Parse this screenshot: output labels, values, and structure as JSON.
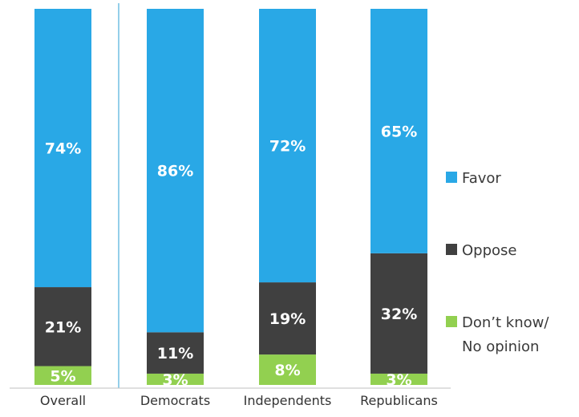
{
  "chart_data": {
    "type": "bar",
    "stacked": true,
    "percent_stacked": true,
    "categories": [
      "Overall",
      "Democrats",
      "Independents",
      "Republicans"
    ],
    "series": [
      {
        "name": "Favor",
        "values": [
          74,
          86,
          72,
          65
        ],
        "labels": [
          "74%",
          "86%",
          "72%",
          "65%"
        ],
        "color": "#29a8e6"
      },
      {
        "name": "Oppose",
        "values": [
          21,
          11,
          19,
          32
        ],
        "labels": [
          "21%",
          "11%",
          "19%",
          "32%"
        ],
        "color": "#404040"
      },
      {
        "name": "Don’t know/ No opinion",
        "legend_lines": [
          "Don’t know/",
          "No opinion"
        ],
        "values": [
          5,
          3,
          8,
          3
        ],
        "labels": [
          "5%",
          "3%",
          "8%",
          "3%"
        ],
        "color": "#92d050"
      }
    ],
    "ylim": [
      0,
      100
    ],
    "grid": false,
    "legend": "right",
    "separator_after_category": "Overall",
    "separator_color": "#2a9fd6"
  }
}
